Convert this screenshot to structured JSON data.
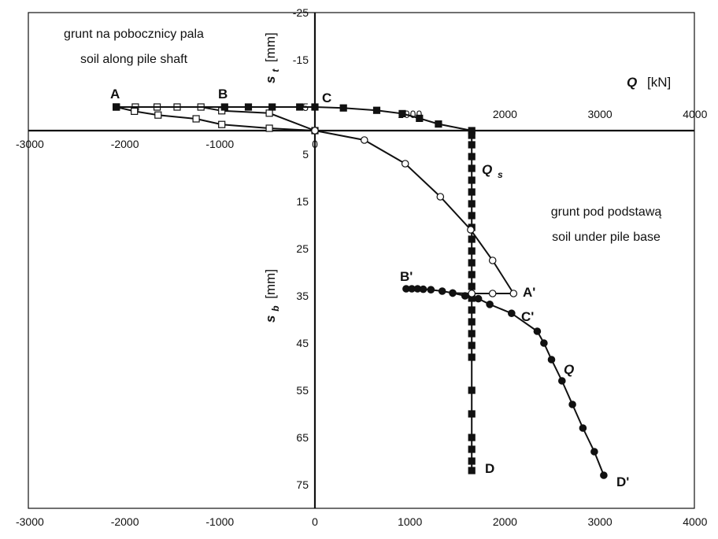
{
  "chart_data": {
    "type": "scatter",
    "annotations": {
      "shaft_pl": "grunt na pobocznicy pala",
      "shaft_en": "soil along pile shaft",
      "base_pl": "grunt pod podstawą",
      "base_en": "soil under pile base"
    },
    "axes": {
      "q_label_symbol": "Q",
      "q_label_unit": "[kN]",
      "qs_label_symbol": "Q",
      "qs_label_sub": "s",
      "st_label_symbol": "s",
      "st_label_sub": "t",
      "st_label_unit": "[mm]",
      "sb_label_symbol": "s",
      "sb_label_sub": "b",
      "sb_label_unit": "[mm]",
      "q_label": "Q [kN]",
      "st_label": "st [mm]",
      "sb_label": "sb [mm]",
      "xlim": [
        -3000,
        4000
      ],
      "st_range": [
        -25,
        0
      ],
      "sb_range": [
        0,
        80
      ],
      "bottom_ticks": [
        "-3000",
        "-2000",
        "-1000",
        "0",
        "1000",
        "2000",
        "3000",
        "4000"
      ],
      "top_ticks": [
        "1000",
        "2000",
        "3000",
        "4000"
      ],
      "middle_ticks": [
        "-3000",
        "-2000",
        "-1000",
        "0"
      ],
      "st_ticks": [
        "-25",
        "-15",
        "-5"
      ],
      "sb_ticks": [
        "5",
        "15",
        "25",
        "35",
        "45",
        "55",
        "65",
        "75"
      ],
      "grid": false
    },
    "point_labels": [
      "A",
      "B",
      "C",
      "D",
      "A'",
      "B'",
      "C'",
      "D'",
      "Q",
      "Qs"
    ],
    "series": [
      {
        "marker": "open-square",
        "panel": "shaft",
        "x": [
          -2090,
          -1890,
          -1660,
          -1450,
          -1200,
          -980,
          -480,
          0,
          -480,
          -980,
          -1250,
          -1650,
          -1900,
          -2090
        ],
        "y": [
          -5,
          -5,
          -5,
          -5,
          -5,
          -4.2,
          -3.7,
          0,
          -0.5,
          -1.3,
          -2.5,
          -3.3,
          -4.1,
          -5
        ]
      },
      {
        "marker": "filled-square",
        "panel": "shaft",
        "x": [
          -2090,
          -950,
          -700,
          -450,
          -160,
          0,
          300,
          650,
          920,
          1100,
          1300,
          1650
        ],
        "y": [
          -5,
          -5,
          -5,
          -5,
          -5,
          -5,
          -4.8,
          -4.3,
          -3.6,
          -2.6,
          -1.4,
          0
        ]
      },
      {
        "marker": "filled-square",
        "panel": "base",
        "x": [
          1650,
          1650,
          1650,
          1650,
          1650,
          1650,
          1650,
          1650,
          1650,
          1650,
          1650,
          1650,
          1650,
          1650,
          1650,
          1650,
          1650,
          1650,
          1650,
          1650,
          1650,
          1650,
          1650,
          1650,
          1650,
          1650
        ],
        "y": [
          1,
          3,
          5.5,
          8,
          10.5,
          13,
          15.5,
          18,
          20.5,
          23,
          25.5,
          28,
          30.5,
          33,
          35.5,
          38,
          40.5,
          43,
          45.5,
          48,
          55,
          60,
          65,
          67.5,
          70,
          72
        ]
      },
      {
        "marker": "open-circle",
        "panel": "base",
        "x": [
          0,
          520,
          950,
          1320,
          1640,
          1870,
          2090,
          1870,
          1650,
          1450
        ],
        "y": [
          0,
          2,
          7,
          14,
          21,
          27.5,
          34.5,
          34.5,
          34.5,
          34.4
        ]
      },
      {
        "marker": "filled-circle",
        "panel": "base",
        "x": [
          960,
          1020,
          1080,
          1140,
          1220,
          1340,
          1450,
          1580,
          1720,
          1840,
          2070,
          2340,
          2410,
          2490,
          2600,
          2710,
          2820,
          2940,
          3040
        ],
        "y": [
          33.5,
          33.5,
          33.5,
          33.6,
          33.7,
          34.0,
          34.4,
          35.0,
          35.6,
          36.8,
          38.7,
          42.5,
          45,
          48.5,
          53,
          58,
          63,
          68,
          73
        ]
      }
    ]
  }
}
